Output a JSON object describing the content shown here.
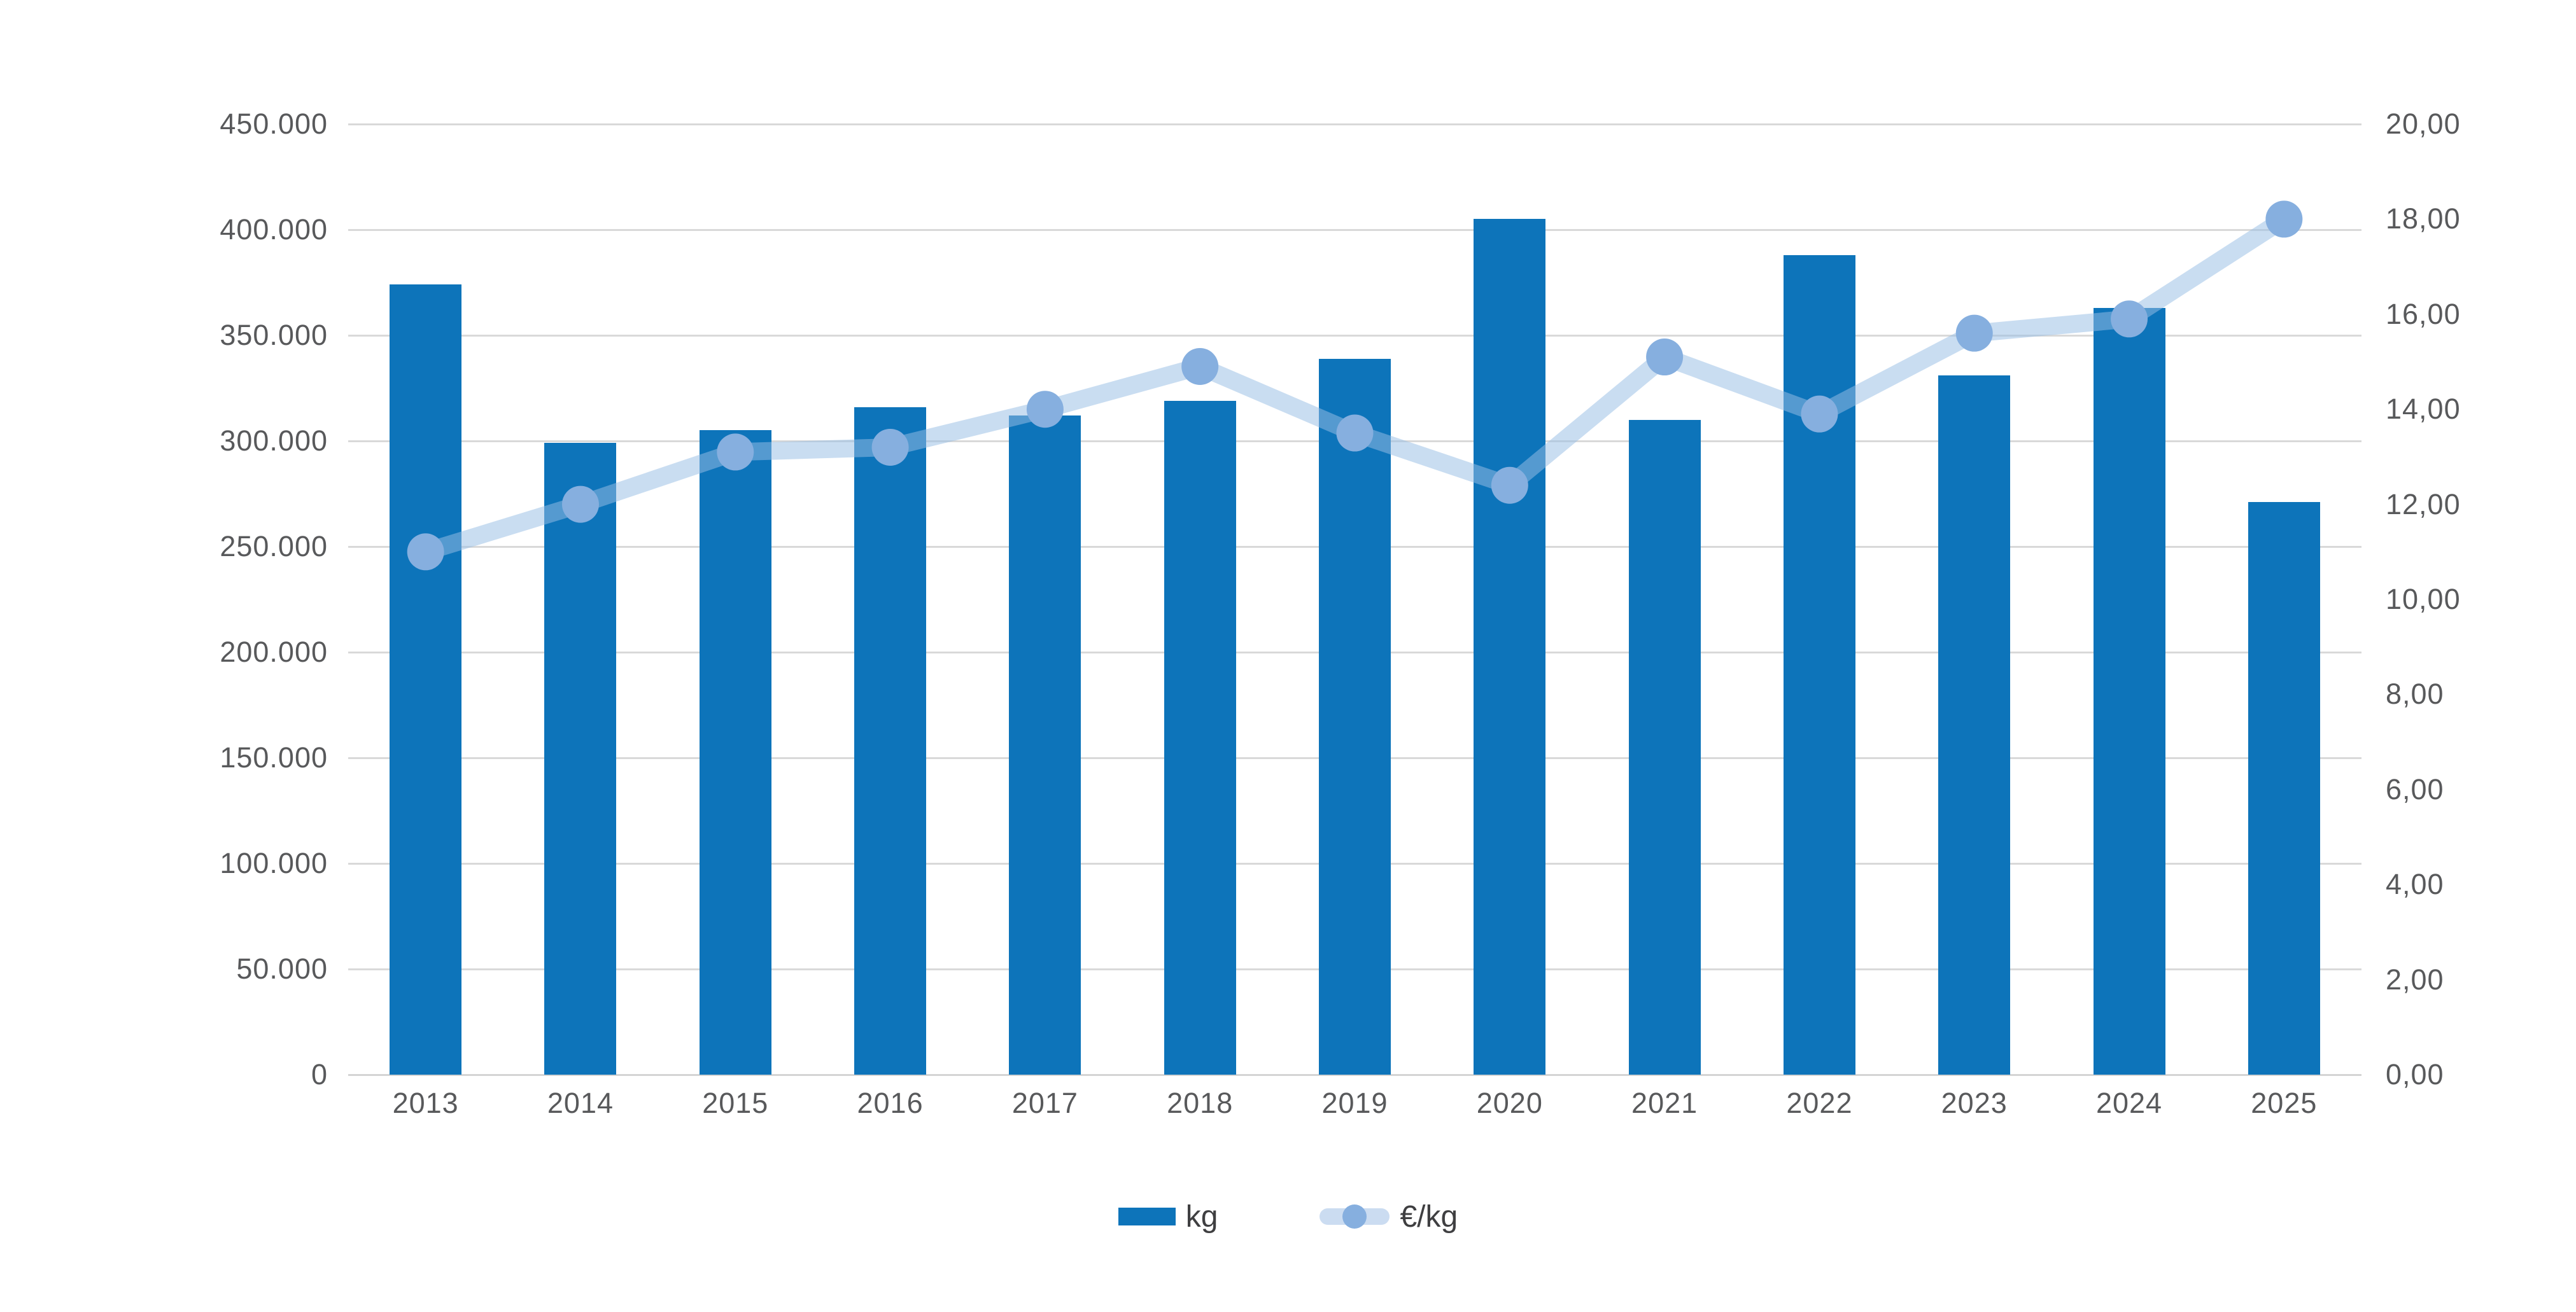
{
  "chart_data": {
    "type": "bar",
    "subtype": "combo-bar-line-dual-axis",
    "title": "",
    "categories": [
      "2013",
      "2014",
      "2015",
      "2016",
      "2017",
      "2018",
      "2019",
      "2020",
      "2021",
      "2022",
      "2023",
      "2024",
      "2025"
    ],
    "series": [
      {
        "name": "kg",
        "type": "bar",
        "axis": "left",
        "values": [
          374000,
          299000,
          305000,
          316000,
          312000,
          319000,
          339000,
          405000,
          310000,
          388000,
          331000,
          363000,
          271000
        ]
      },
      {
        "name": "€/kg",
        "type": "line",
        "axis": "right",
        "values": [
          11.0,
          12.0,
          13.1,
          13.2,
          14.0,
          14.9,
          13.5,
          12.4,
          15.1,
          13.9,
          15.6,
          15.9,
          18.0
        ]
      }
    ],
    "left_axis": {
      "min": 0,
      "max": 450000,
      "step": 50000,
      "tick_labels": [
        "0",
        "50.000",
        "100.000",
        "150.000",
        "200.000",
        "250.000",
        "300.000",
        "350.000",
        "400.000",
        "450.000"
      ]
    },
    "right_axis": {
      "min": 0,
      "max": 20,
      "step": 2,
      "tick_labels": [
        "0,00",
        "2,00",
        "4,00",
        "6,00",
        "8,00",
        "10,00",
        "12,00",
        "14,00",
        "16,00",
        "18,00",
        "20,00"
      ]
    },
    "grid": "horizontal",
    "legend": {
      "position": "bottom",
      "entries": [
        "kg",
        "€/kg"
      ]
    },
    "colors": {
      "bar": "#0d74ba",
      "line": "rgba(152,189,228,0.52)",
      "marker": "#86afdf",
      "grid": "#d9d9d9",
      "text": "#58595b"
    }
  }
}
